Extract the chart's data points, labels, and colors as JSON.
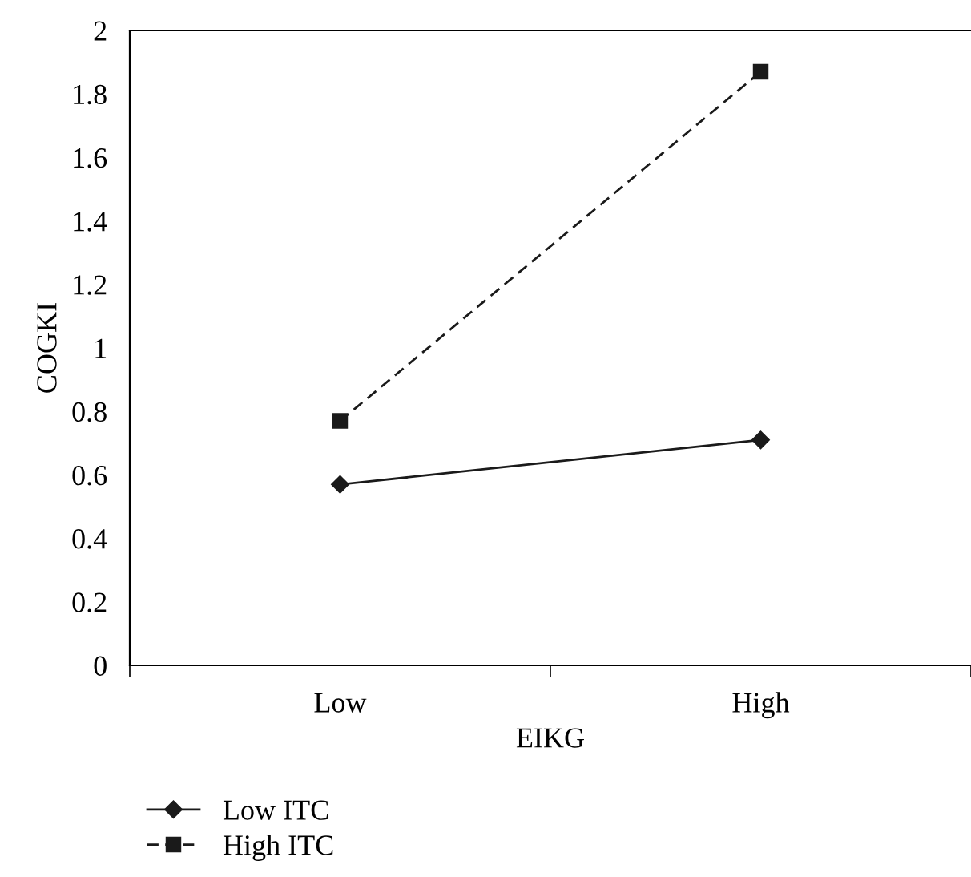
{
  "chart_data": {
    "type": "line",
    "xlabel": "EIKG",
    "ylabel": "COGKI",
    "categories": [
      "Low",
      "High"
    ],
    "series": [
      {
        "name": "Low ITC",
        "color": "#1a1a1a",
        "values": [
          0.57,
          0.71
        ],
        "marker": "diamond",
        "line_style": "solid"
      },
      {
        "name": "High ITC",
        "color": "#1a1a1a",
        "values": [
          0.77,
          1.87
        ],
        "marker": "square",
        "line_style": "dashed"
      }
    ],
    "ylim": [
      0,
      2
    ],
    "yticks": [
      0,
      0.2,
      0.4,
      0.6,
      0.8,
      1,
      1.2,
      1.4,
      1.6,
      1.8,
      2
    ],
    "grid": false,
    "legend": "bottom left"
  }
}
